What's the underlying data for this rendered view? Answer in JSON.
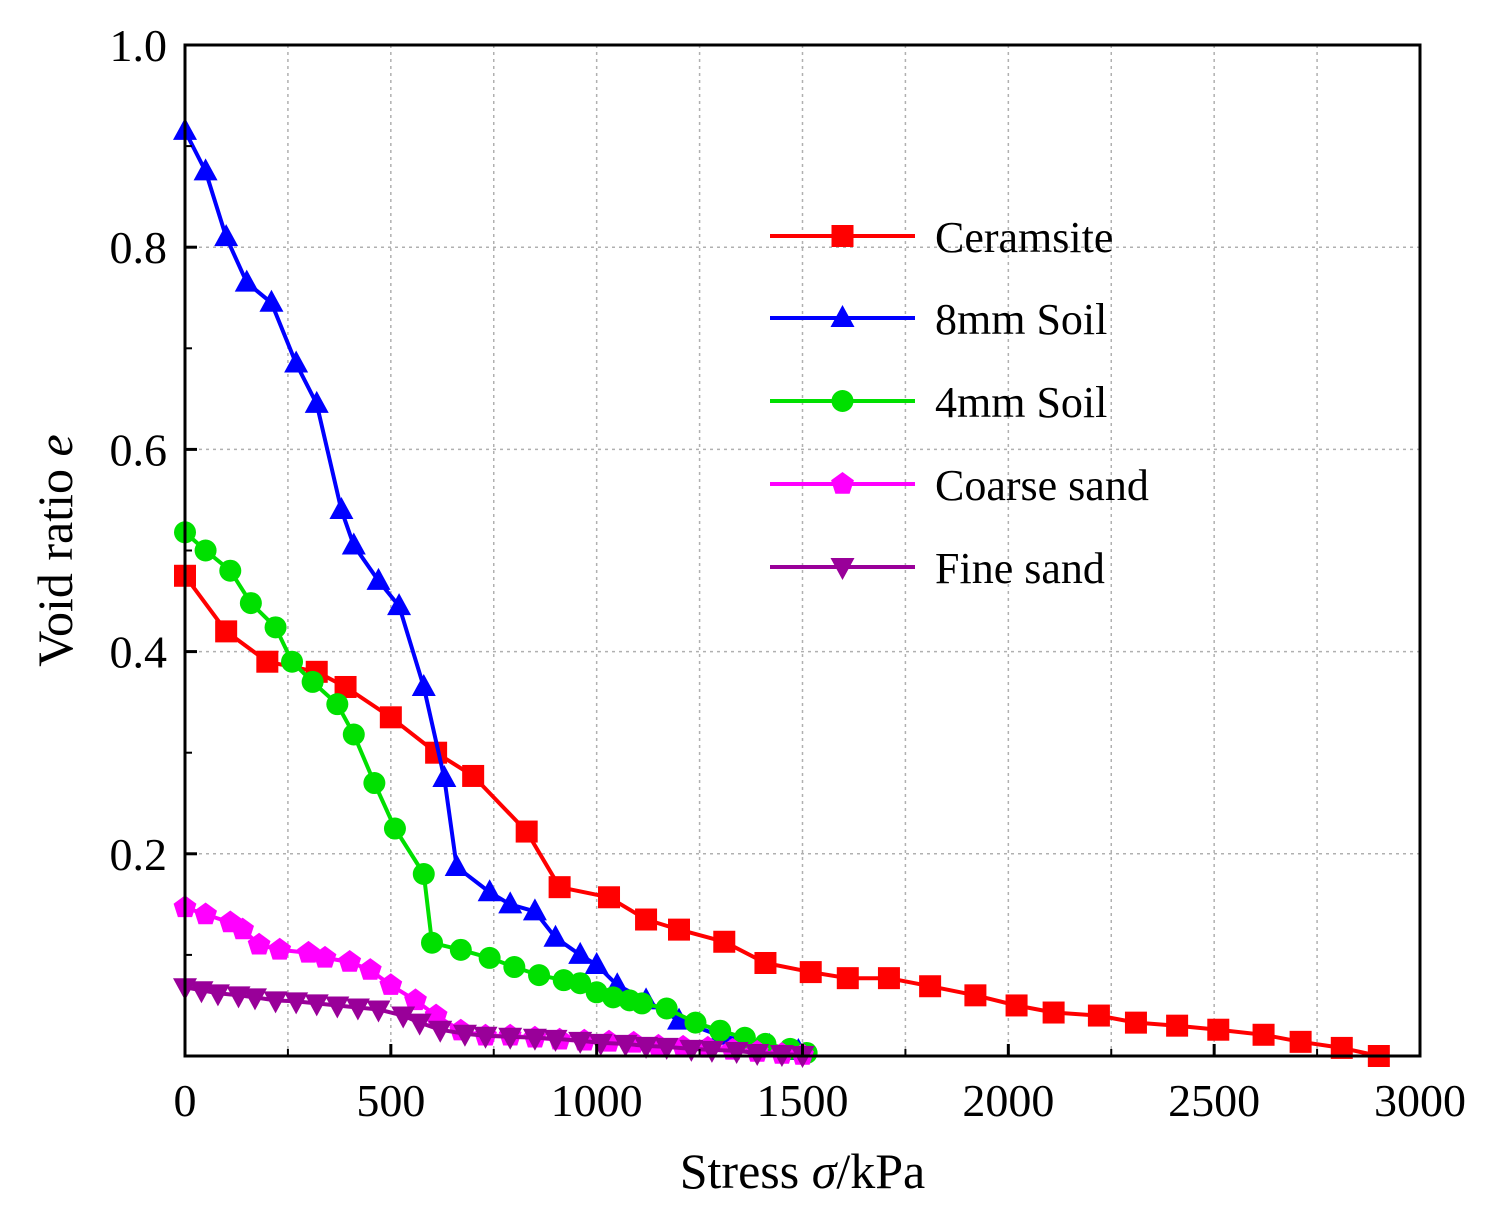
{
  "chart_data": {
    "type": "line",
    "title": "",
    "xlabel": {
      "prefix": "Stress ",
      "symbol": "σ",
      "suffix": "/kPa"
    },
    "ylabel": {
      "prefix": "Void ratio ",
      "symbol": "e"
    },
    "xlim": [
      0,
      3000
    ],
    "ylim": [
      0,
      1.0
    ],
    "xticks": [
      0,
      500,
      1000,
      1500,
      2000,
      2500,
      3000
    ],
    "xtick_labels": [
      "0",
      "500",
      "1000",
      "1500",
      "2000",
      "2500",
      "3000"
    ],
    "yticks": [
      0.2,
      0.4,
      0.6,
      0.8,
      1.0
    ],
    "ytick_labels": [
      "0.2",
      "0.4",
      "0.6",
      "0.8",
      "1.0"
    ],
    "grid": true,
    "legend_position": "upper-right",
    "series": [
      {
        "name": "Ceramsite",
        "color": "#ff0000",
        "marker": "square",
        "x": [
          0,
          100,
          200,
          320,
          390,
          500,
          610,
          700,
          830,
          910,
          1030,
          1120,
          1200,
          1310,
          1410,
          1520,
          1610,
          1710,
          1810,
          1920,
          2020,
          2110,
          2220,
          2310,
          2410,
          2510,
          2620,
          2710,
          2810,
          2900
        ],
        "y": [
          0.475,
          0.42,
          0.39,
          0.38,
          0.365,
          0.335,
          0.3,
          0.277,
          0.222,
          0.167,
          0.157,
          0.135,
          0.125,
          0.113,
          0.092,
          0.083,
          0.077,
          0.077,
          0.069,
          0.06,
          0.05,
          0.043,
          0.04,
          0.033,
          0.03,
          0.026,
          0.021,
          0.014,
          0.008,
          0.0
        ]
      },
      {
        "name": "8mm Soil",
        "color": "#0000ff",
        "marker": "triangle-up",
        "x": [
          0,
          50,
          100,
          150,
          210,
          270,
          320,
          380,
          410,
          470,
          520,
          580,
          630,
          660,
          740,
          790,
          850,
          900,
          960,
          1000,
          1050,
          1120,
          1200,
          1300,
          1420,
          1490
        ],
        "y": [
          0.915,
          0.875,
          0.81,
          0.765,
          0.745,
          0.685,
          0.645,
          0.54,
          0.505,
          0.47,
          0.445,
          0.365,
          0.275,
          0.187,
          0.162,
          0.15,
          0.143,
          0.117,
          0.1,
          0.09,
          0.07,
          0.055,
          0.035,
          0.02,
          0.01,
          0.005
        ]
      },
      {
        "name": "4mm Soil",
        "color": "#00e000",
        "marker": "circle",
        "x": [
          0,
          50,
          110,
          160,
          220,
          260,
          310,
          370,
          410,
          460,
          510,
          580,
          600,
          670,
          740,
          800,
          860,
          920,
          960,
          1000,
          1040,
          1080,
          1110,
          1170,
          1240,
          1300,
          1360,
          1410,
          1470,
          1510
        ],
        "y": [
          0.518,
          0.5,
          0.48,
          0.448,
          0.424,
          0.39,
          0.37,
          0.348,
          0.318,
          0.27,
          0.225,
          0.18,
          0.112,
          0.105,
          0.097,
          0.088,
          0.08,
          0.075,
          0.072,
          0.063,
          0.058,
          0.055,
          0.052,
          0.047,
          0.033,
          0.025,
          0.018,
          0.012,
          0.007,
          0.003
        ]
      },
      {
        "name": "Coarse sand",
        "color": "#ff00ff",
        "marker": "pentagon",
        "x": [
          0,
          50,
          110,
          140,
          180,
          230,
          300,
          340,
          400,
          450,
          500,
          560,
          610,
          670,
          730,
          790,
          850,
          910,
          970,
          1030,
          1090,
          1150,
          1210,
          1270,
          1330,
          1390,
          1450,
          1500
        ],
        "y": [
          0.147,
          0.14,
          0.132,
          0.125,
          0.11,
          0.105,
          0.102,
          0.097,
          0.093,
          0.085,
          0.07,
          0.055,
          0.04,
          0.025,
          0.02,
          0.02,
          0.018,
          0.016,
          0.015,
          0.014,
          0.013,
          0.01,
          0.009,
          0.008,
          0.006,
          0.004,
          0.002,
          0.001
        ]
      },
      {
        "name": "Fine sand",
        "color": "#990099",
        "marker": "triangle-down",
        "x": [
          0,
          40,
          80,
          130,
          170,
          220,
          270,
          320,
          370,
          420,
          470,
          530,
          570,
          620,
          680,
          730,
          790,
          850,
          900,
          960,
          1010,
          1070,
          1120,
          1170,
          1230,
          1280,
          1340,
          1390,
          1450,
          1500
        ],
        "y": [
          0.068,
          0.065,
          0.062,
          0.06,
          0.058,
          0.055,
          0.054,
          0.052,
          0.05,
          0.048,
          0.046,
          0.04,
          0.033,
          0.026,
          0.022,
          0.02,
          0.019,
          0.018,
          0.017,
          0.015,
          0.013,
          0.012,
          0.01,
          0.009,
          0.007,
          0.006,
          0.005,
          0.003,
          0.002,
          0.001
        ]
      }
    ]
  }
}
